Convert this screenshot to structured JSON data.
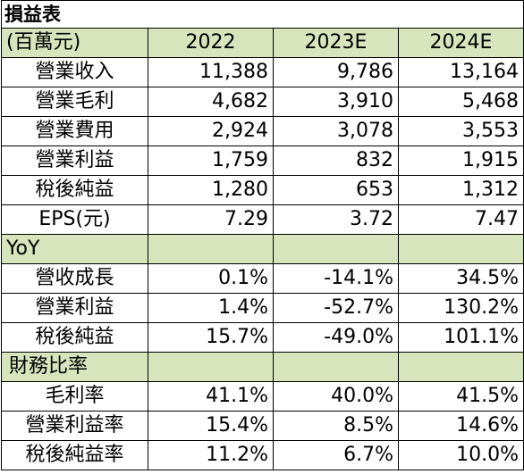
{
  "table_title": "損益表",
  "header": {
    "unit_label": "(百萬元)",
    "years": [
      "2022",
      "2023E",
      "2024E"
    ]
  },
  "income_rows": [
    {
      "label": "營業收入",
      "values": [
        "11,388",
        "9,786",
        "13,164"
      ]
    },
    {
      "label": "營業毛利",
      "values": [
        "4,682",
        "3,910",
        "5,468"
      ]
    },
    {
      "label": "營業費用",
      "values": [
        "2,924",
        "3,078",
        "3,553"
      ]
    },
    {
      "label": "營業利益",
      "values": [
        "1,759",
        "832",
        "1,915"
      ]
    },
    {
      "label": "稅後純益",
      "values": [
        "1,280",
        "653",
        "1,312"
      ]
    },
    {
      "label": "EPS(元)",
      "values": [
        "7.29",
        "3.72",
        "7.47"
      ]
    }
  ],
  "yoy": {
    "section_label": "YoY",
    "rows": [
      {
        "label": "營收成長",
        "values": [
          "0.1%",
          "-14.1%",
          "34.5%"
        ]
      },
      {
        "label": "營業利益",
        "values": [
          "1.4%",
          "-52.7%",
          "130.2%"
        ]
      },
      {
        "label": "稅後純益",
        "values": [
          "15.7%",
          "-49.0%",
          "101.1%"
        ]
      }
    ]
  },
  "ratios": {
    "section_label": "財務比率",
    "rows": [
      {
        "label": "毛利率",
        "values": [
          "41.1%",
          "40.0%",
          "41.5%"
        ]
      },
      {
        "label": "營業利益率",
        "values": [
          "15.4%",
          "8.5%",
          "14.6%"
        ]
      },
      {
        "label": "稅後純益率",
        "values": [
          "11.2%",
          "6.7%",
          "10.0%"
        ]
      }
    ]
  },
  "colors": {
    "band_background": "#d8e4bc",
    "border": "#000000"
  }
}
